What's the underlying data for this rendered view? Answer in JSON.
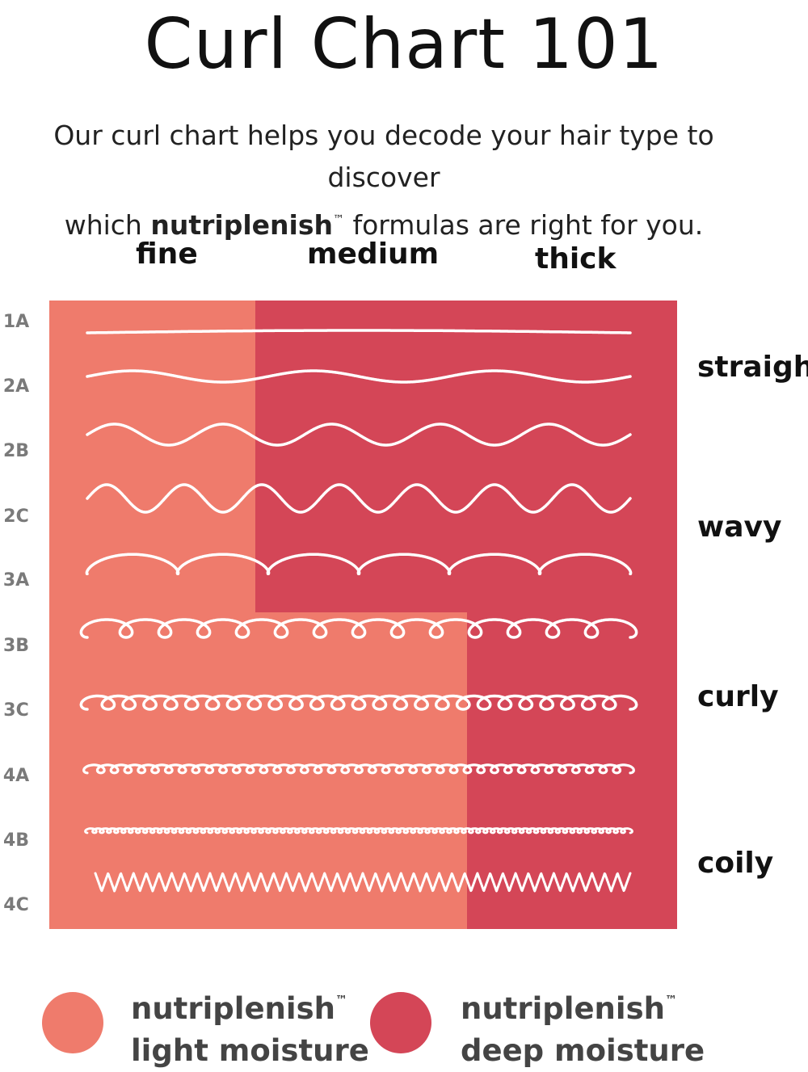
{
  "title": "Curl Chart 101",
  "subtitle": {
    "line1": "Our curl chart helps you decode your hair type to discover",
    "line2_pre": "which",
    "brand": "nutriplenish",
    "tm": "™",
    "line2_post": "formulas are right for you."
  },
  "columns": [
    "fine",
    "medium",
    "thick"
  ],
  "rows": [
    "1A",
    "2A",
    "2B",
    "2C",
    "3A",
    "3B",
    "3C",
    "4A",
    "4B",
    "4C"
  ],
  "categories": [
    "straight",
    "wavy",
    "curly",
    "coily"
  ],
  "colors": {
    "light": "#ef7b6c",
    "deep": "#d44657",
    "stroke": "#ffffff"
  },
  "legend": [
    {
      "brand": "nutriplenish",
      "tm": "™",
      "desc": "light moisture",
      "color": "#ef7b6c"
    },
    {
      "brand": "nutriplenish",
      "tm": "™",
      "desc": "deep moisture",
      "color": "#d44657"
    }
  ]
}
